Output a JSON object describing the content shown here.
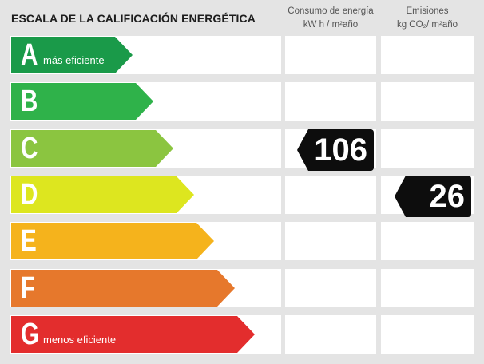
{
  "title": "ESCALA DE LA CALIFICACIÓN ENERGÉTICA",
  "columns": {
    "consumo": {
      "line1": "Consumo de energía",
      "line2": "kW h / m²año"
    },
    "emisiones": {
      "line1": "Emisiones",
      "line2": "kg CO₂/ m²año"
    }
  },
  "ratings": [
    {
      "letter": "A",
      "sub": "más eficiente",
      "color": "#1a9a49"
    },
    {
      "letter": "B",
      "sub": "",
      "color": "#2fb24a"
    },
    {
      "letter": "C",
      "sub": "",
      "color": "#8bc540"
    },
    {
      "letter": "D",
      "sub": "",
      "color": "#dde61f"
    },
    {
      "letter": "E",
      "sub": "",
      "color": "#f5b31c"
    },
    {
      "letter": "F",
      "sub": "",
      "color": "#e6782c"
    },
    {
      "letter": "G",
      "sub": "menos eficiente",
      "color": "#e32d2d"
    }
  ],
  "consumo_value": {
    "rating": "C",
    "value": "106"
  },
  "emisiones_value": {
    "rating": "D",
    "value": "26"
  }
}
